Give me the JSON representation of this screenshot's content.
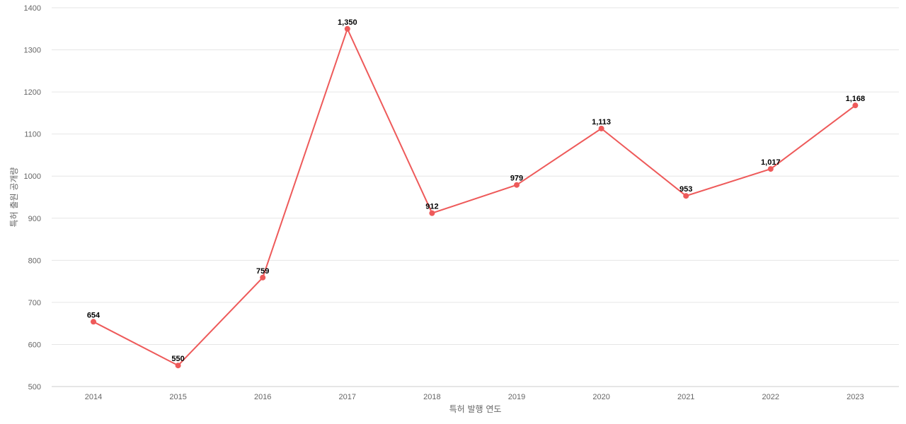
{
  "chart_data": {
    "type": "line",
    "title": "",
    "xlabel": "특허 발행 연도",
    "ylabel": "특허 출원 공개량",
    "categories": [
      "2014",
      "2015",
      "2016",
      "2017",
      "2018",
      "2019",
      "2020",
      "2021",
      "2022",
      "2023"
    ],
    "series": [
      {
        "values": [
          654,
          550,
          759,
          1350,
          912,
          979,
          1113,
          953,
          1017,
          1168
        ],
        "labels": [
          "654",
          "550",
          "759",
          "1,350",
          "912",
          "979",
          "1,113",
          "953",
          "1,017",
          "1,168"
        ],
        "color": "#ee5a5a"
      }
    ],
    "ylim": [
      500,
      1400
    ],
    "yticks": [
      500,
      600,
      700,
      800,
      900,
      1000,
      1100,
      1200,
      1300,
      1400
    ],
    "grid": true,
    "legend": "none"
  }
}
